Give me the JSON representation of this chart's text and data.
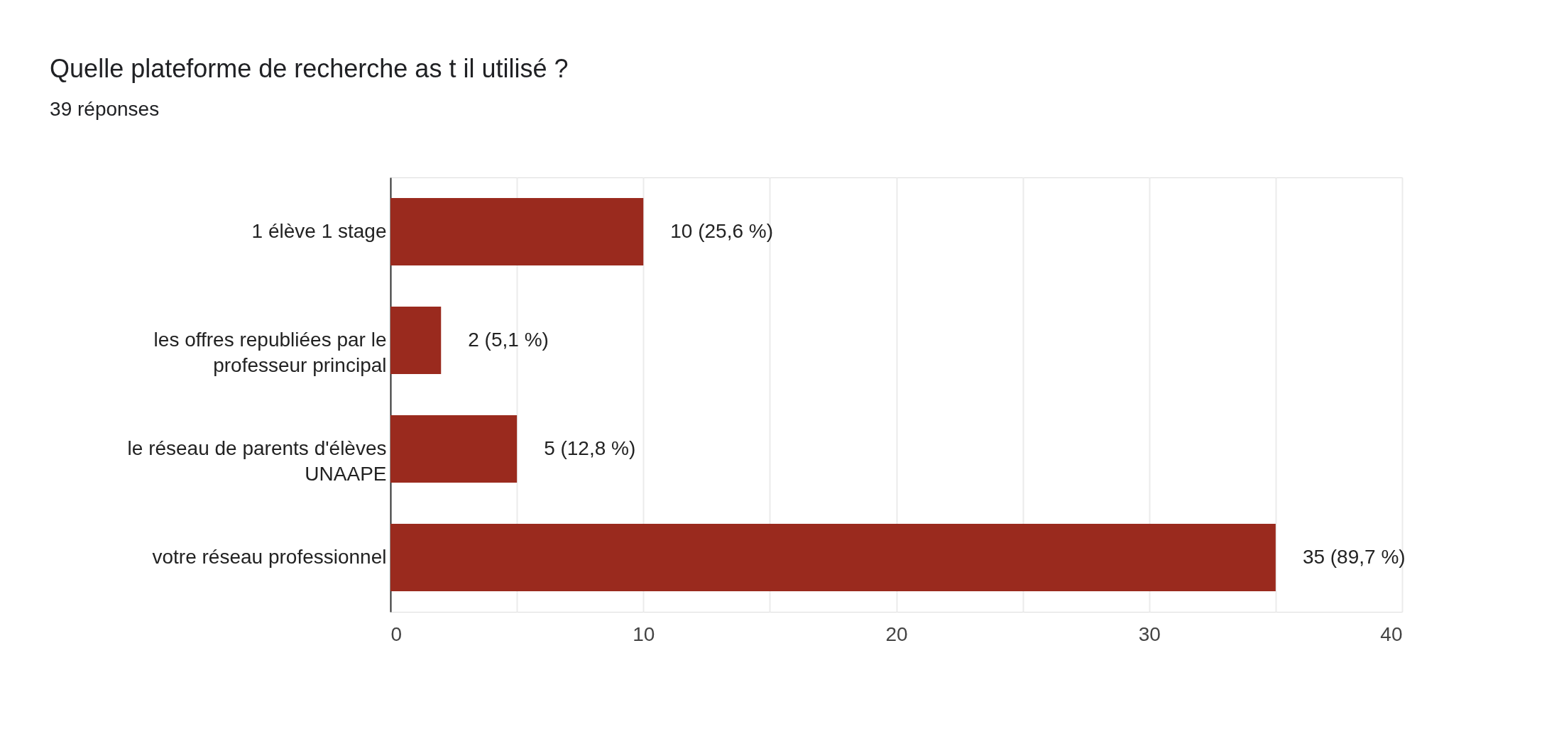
{
  "chart_data": {
    "type": "bar",
    "orientation": "horizontal",
    "title": "Quelle plateforme de recherche as t il utilisé ?",
    "subtitle": "39 réponses",
    "categories": [
      "1 élève 1 stage",
      "les offres republiées par le professeur principal",
      "le réseau de parents d'élèves UNAAPE",
      "votre réseau professionnel"
    ],
    "values": [
      10,
      2,
      5,
      35
    ],
    "value_labels": [
      "10 (25,6 %)",
      "2 (5,1 %)",
      "5 (12,8 %)",
      "35 (89,7 %)"
    ],
    "color": "#9a2a1e",
    "xlim": [
      0,
      40
    ],
    "xticks": [
      0,
      {
        "value": 5,
        "label": null
      },
      10,
      {
        "value": 15,
        "label": null
      },
      20,
      {
        "value": 25,
        "label": null
      },
      30,
      {
        "value": 35,
        "label": null
      },
      40
    ],
    "grid": "x"
  }
}
